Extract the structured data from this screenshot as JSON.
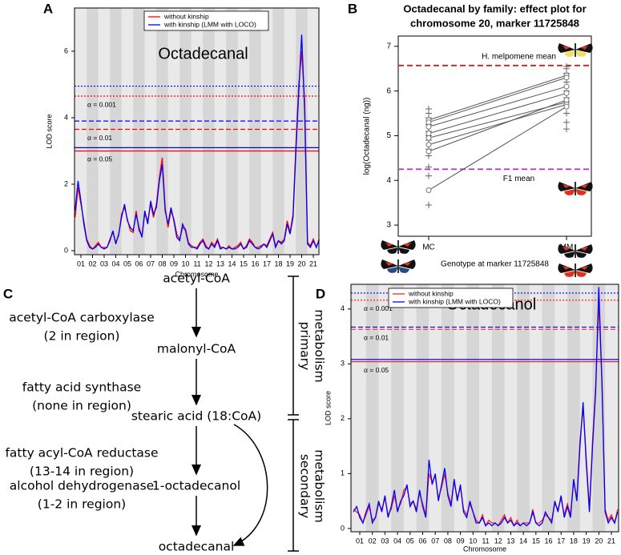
{
  "panel_labels": [
    "A",
    "B",
    "C",
    "D"
  ],
  "chart_data": [
    {
      "type": "lod",
      "title": "Octadecanal",
      "xlabel": "Chromosome",
      "ylabel": "LOD score",
      "legend": "top",
      "x": [
        0.5,
        0.75,
        1,
        1.25,
        1.5,
        1.75,
        2,
        2.25,
        2.5,
        2.75,
        3,
        3.25,
        3.5,
        3.75,
        4,
        4.25,
        4.5,
        4.75,
        5,
        5.25,
        5.5,
        5.75,
        6,
        6.25,
        6.5,
        6.75,
        7,
        7.25,
        7.5,
        7.75,
        8,
        8.25,
        8.5,
        8.75,
        9,
        9.25,
        9.5,
        9.75,
        10,
        10.25,
        10.5,
        10.75,
        11,
        11.25,
        11.5,
        11.75,
        12,
        12.25,
        12.5,
        12.75,
        13,
        13.25,
        13.5,
        13.75,
        14,
        14.25,
        14.5,
        14.75,
        15,
        15.25,
        15.5,
        15.75,
        16,
        16.25,
        16.5,
        16.75,
        17,
        17.25,
        17.5,
        17.75,
        18,
        18.25,
        18.5,
        18.75,
        19,
        19.25,
        19.5,
        19.75,
        20,
        20.25,
        20.5,
        20.75,
        21,
        21.25,
        21.5
      ],
      "xlim": [
        0.45,
        21.48
      ],
      "xticks": [
        {
          "value": 1,
          "label": "01"
        },
        {
          "value": 2,
          "label": "02"
        },
        {
          "value": 3,
          "label": "03"
        },
        {
          "value": 4,
          "label": "04"
        },
        {
          "value": 5,
          "label": "05"
        },
        {
          "value": 6,
          "label": "06"
        },
        {
          "value": 7,
          "label": "07"
        },
        {
          "value": 8,
          "label": "08"
        },
        {
          "value": 9,
          "label": "09"
        },
        {
          "value": 10,
          "label": "10"
        },
        {
          "value": 11,
          "label": "11"
        },
        {
          "value": 12,
          "label": "12"
        },
        {
          "value": 13,
          "label": "13"
        },
        {
          "value": 14,
          "label": "14"
        },
        {
          "value": 15,
          "label": "15"
        },
        {
          "value": 16,
          "label": "16"
        },
        {
          "value": 17,
          "label": "17"
        },
        {
          "value": 18,
          "label": "18"
        },
        {
          "value": 19,
          "label": "19"
        },
        {
          "value": 20,
          "label": "20"
        },
        {
          "value": 21,
          "label": "21"
        }
      ],
      "ylim": [
        -0.12,
        7.3
      ],
      "yticks": [
        0,
        2,
        4,
        6
      ],
      "series": [
        {
          "name": "without kinship",
          "color": "#ff0000",
          "values": [
            1.0,
            1.9,
            1.4,
            0.9,
            0.35,
            0.15,
            0.05,
            0.15,
            0.25,
            0.1,
            0.1,
            0.1,
            0.35,
            0.55,
            0.25,
            0.45,
            1.1,
            1.3,
            0.95,
            0.6,
            0.55,
            1.2,
            0.6,
            0.45,
            1.1,
            0.9,
            1.4,
            1.0,
            1.4,
            2.2,
            2.8,
            1.3,
            0.7,
            1.2,
            0.95,
            0.5,
            0.35,
            0.7,
            0.65,
            0.25,
            0.15,
            0.1,
            0.1,
            0.25,
            0.35,
            0.15,
            0.05,
            0.25,
            0.15,
            0.35,
            0.1,
            0.1,
            0.05,
            0.15,
            0.05,
            0.1,
            0.15,
            0.25,
            0.05,
            0.15,
            0.35,
            0.25,
            0.1,
            0.1,
            0.15,
            0.2,
            0.15,
            0.35,
            0.55,
            0.15,
            0.3,
            0.25,
            0.35,
            0.9,
            0.55,
            1.1,
            3.2,
            5.0,
            6.0,
            4.5,
            0.25,
            0.15,
            0.35,
            0.1,
            0.35
          ]
        },
        {
          "name": "with kinship (LMM with LOCO)",
          "color": "#0000ff",
          "values": [
            1.2,
            2.1,
            1.5,
            0.8,
            0.3,
            0.1,
            0.05,
            0.1,
            0.2,
            0.1,
            0.05,
            0.1,
            0.3,
            0.6,
            0.2,
            0.5,
            1.0,
            1.4,
            0.9,
            0.7,
            0.6,
            1.1,
            0.7,
            0.4,
            1.2,
            0.8,
            1.5,
            1.1,
            1.3,
            2.1,
            2.6,
            1.2,
            0.8,
            1.3,
            0.9,
            0.4,
            0.3,
            0.8,
            0.6,
            0.2,
            0.1,
            0.1,
            0.05,
            0.2,
            0.3,
            0.1,
            0.05,
            0.2,
            0.1,
            0.3,
            0.05,
            0.1,
            0.05,
            0.1,
            0.05,
            0.05,
            0.1,
            0.2,
            0.05,
            0.1,
            0.3,
            0.2,
            0.1,
            0.05,
            0.1,
            0.2,
            0.1,
            0.3,
            0.5,
            0.1,
            0.3,
            0.2,
            0.3,
            0.8,
            0.5,
            1.0,
            3.0,
            4.8,
            6.5,
            4.2,
            0.2,
            0.1,
            0.3,
            0.1,
            0.3
          ]
        }
      ],
      "thresholds": [
        {
          "label": "α = 0.001",
          "line_style": "dotted",
          "values": [
            4.65,
            4.95
          ]
        },
        {
          "label": "α = 0.01",
          "line_style": "dashed",
          "values": [
            3.65,
            3.9
          ]
        },
        {
          "label": "α = 0.05",
          "line_style": "solid",
          "values": [
            3.0,
            3.1
          ]
        }
      ]
    },
    {
      "type": "effect",
      "title_lines": [
        "Octadecanal by family: effect plot for",
        "chromosome 20, marker 11725848"
      ],
      "xlabel": "Genotype at marker 11725848",
      "ylabel": "log(Octadecanal (ng))",
      "categories": [
        "MC",
        "MM"
      ],
      "ylim": [
        2.75,
        7.23
      ],
      "yticks": [
        3,
        4,
        5,
        6,
        7
      ],
      "family_color": "#555555",
      "families": [
        {
          "values": [
            5.35,
            6.35
          ]
        },
        {
          "values": [
            5.3,
            6.3
          ]
        },
        {
          "values": [
            5.2,
            6.1
          ]
        },
        {
          "values": [
            5.05,
            5.95
          ]
        },
        {
          "values": [
            4.95,
            5.75
          ]
        },
        {
          "values": [
            4.8,
            5.7
          ]
        },
        {
          "values": [
            4.65,
            5.8
          ]
        },
        {
          "values": [
            3.78,
            5.65
          ]
        }
      ],
      "individuals": [
        [
          3.45,
          4.1,
          4.3,
          4.55,
          4.7,
          4.9,
          5.0,
          5.1,
          5.25,
          5.4,
          5.5,
          5.6
        ],
        [
          5.15,
          5.3,
          5.5,
          5.85,
          6.0,
          6.2,
          6.4,
          6.5,
          6.55
        ]
      ],
      "reference_lines": [
        {
          "label": "H. melpomene mean",
          "value": 6.57,
          "color": "#cc2222"
        },
        {
          "label": "F1 mean",
          "value": 4.25,
          "color": "#b040c0"
        }
      ]
    },
    {
      "type": "lod",
      "title": "Octadecanol",
      "xlabel": "Chromosome",
      "ylabel": "LOD score",
      "legend": "top",
      "x": [
        0.5,
        0.75,
        1,
        1.25,
        1.5,
        1.75,
        2,
        2.25,
        2.5,
        2.75,
        3,
        3.25,
        3.5,
        3.75,
        4,
        4.25,
        4.5,
        4.75,
        5,
        5.25,
        5.5,
        5.75,
        6,
        6.25,
        6.5,
        6.75,
        7,
        7.25,
        7.5,
        7.75,
        8,
        8.25,
        8.5,
        8.75,
        9,
        9.25,
        9.5,
        9.75,
        10,
        10.25,
        10.5,
        10.75,
        11,
        11.25,
        11.5,
        11.75,
        12,
        12.25,
        12.5,
        12.75,
        13,
        13.25,
        13.5,
        13.75,
        14,
        14.25,
        14.5,
        14.75,
        15,
        15.25,
        15.5,
        15.75,
        16,
        16.25,
        16.5,
        16.75,
        17,
        17.25,
        17.5,
        17.75,
        18,
        18.25,
        18.5,
        18.75,
        19,
        19.25,
        19.5,
        19.75,
        20,
        20.25,
        20.5,
        20.75,
        21,
        21.25,
        21.5
      ],
      "xlim": [
        0.3,
        21.57
      ],
      "xticks": [
        {
          "value": 1,
          "label": "01"
        },
        {
          "value": 2,
          "label": "02"
        },
        {
          "value": 3,
          "label": "03"
        },
        {
          "value": 4,
          "label": "04"
        },
        {
          "value": 5,
          "label": "05"
        },
        {
          "value": 6,
          "label": "06"
        },
        {
          "value": 7,
          "label": "07"
        },
        {
          "value": 8,
          "label": "08"
        },
        {
          "value": 9,
          "label": "09"
        },
        {
          "value": 10,
          "label": "10"
        },
        {
          "value": 11,
          "label": "11"
        },
        {
          "value": 12,
          "label": "12"
        },
        {
          "value": 13,
          "label": "13"
        },
        {
          "value": 14,
          "label": "14"
        },
        {
          "value": 15,
          "label": "15"
        },
        {
          "value": 16,
          "label": "16"
        },
        {
          "value": 17,
          "label": "17"
        },
        {
          "value": 18,
          "label": "18"
        },
        {
          "value": 19,
          "label": "19"
        },
        {
          "value": 20,
          "label": "20"
        },
        {
          "value": 21,
          "label": "21"
        }
      ],
      "ylim": [
        -0.06,
        4.45
      ],
      "yticks": [
        0,
        1,
        2,
        3,
        4
      ],
      "series": [
        {
          "name": "without kinship",
          "color": "#ff2020",
          "values": [
            0.35,
            0.3,
            0.25,
            0.1,
            0.25,
            0.4,
            0.15,
            0.2,
            0.45,
            0.35,
            0.55,
            0.25,
            0.35,
            0.6,
            0.35,
            0.45,
            0.7,
            0.75,
            0.45,
            0.5,
            0.35,
            0.65,
            0.45,
            0.25,
            1.0,
            0.85,
            0.95,
            0.55,
            0.75,
            1.0,
            0.65,
            0.45,
            0.85,
            0.55,
            0.75,
            0.35,
            0.25,
            0.45,
            0.3,
            0.15,
            0.1,
            0.25,
            0.05,
            0.15,
            0.1,
            0.1,
            0.05,
            0.15,
            0.25,
            0.1,
            0.2,
            0.05,
            0.15,
            0.05,
            0.1,
            0.1,
            0.1,
            0.35,
            0.1,
            0.1,
            0.15,
            0.25,
            0.2,
            0.15,
            0.45,
            0.35,
            0.55,
            0.25,
            0.45,
            0.25,
            0.85,
            0.55,
            1.6,
            2.2,
            1.3,
            0.35,
            1.6,
            2.6,
            4.1,
            2.7,
            0.35,
            0.15,
            0.25,
            0.1,
            0.35
          ]
        },
        {
          "name": "with kinship (LMM with LOCO)",
          "color": "#0000ff",
          "values": [
            0.3,
            0.4,
            0.2,
            0.1,
            0.3,
            0.45,
            0.1,
            0.2,
            0.5,
            0.3,
            0.6,
            0.2,
            0.4,
            0.7,
            0.3,
            0.5,
            0.6,
            0.8,
            0.4,
            0.5,
            0.3,
            0.7,
            0.4,
            0.2,
            1.25,
            0.8,
            1.0,
            0.5,
            0.8,
            1.1,
            0.6,
            0.4,
            0.9,
            0.5,
            0.8,
            0.3,
            0.2,
            0.5,
            0.3,
            0.1,
            0.1,
            0.2,
            0.05,
            0.1,
            0.05,
            0.1,
            0.05,
            0.1,
            0.2,
            0.1,
            0.15,
            0.05,
            0.1,
            0.05,
            0.1,
            0.05,
            0.1,
            0.3,
            0.1,
            0.05,
            0.1,
            0.3,
            0.2,
            0.1,
            0.5,
            0.3,
            0.6,
            0.2,
            0.4,
            0.2,
            0.9,
            0.5,
            1.5,
            2.3,
            1.2,
            0.3,
            1.5,
            2.5,
            4.4,
            2.6,
            0.3,
            0.1,
            0.2,
            0.1,
            0.3
          ]
        }
      ],
      "thresholds": [
        {
          "label": "α = 0.001",
          "line_style": "dotted",
          "values": [
            4.16,
            4.29
          ]
        },
        {
          "label": "α = 0.01",
          "line_style": "dashed",
          "values": [
            3.63,
            3.67
          ]
        },
        {
          "label": "α = 0.05",
          "line_style": "solid",
          "values": [
            3.04,
            3.08
          ]
        }
      ]
    }
  ],
  "diagram": {
    "nodes": [
      "acetyl-CoA",
      "malonyl-CoA",
      "stearic acid (18:CoA)",
      "1-octadecanol",
      "octadecanal"
    ],
    "enzymes": [
      {
        "name": "acetyl-CoA carboxylase",
        "note": "(2 in region)"
      },
      {
        "name": "fatty acid synthase",
        "note": "(none in region)"
      },
      {
        "name": "fatty acyl-CoA reductase",
        "note": "(13-14 in region)"
      },
      {
        "name": "alcohol dehydrogenase",
        "note": "(1-2 in region)"
      }
    ],
    "stages": [
      [
        "primary",
        "metabolism"
      ],
      [
        "secondary",
        "metabolism"
      ]
    ]
  }
}
